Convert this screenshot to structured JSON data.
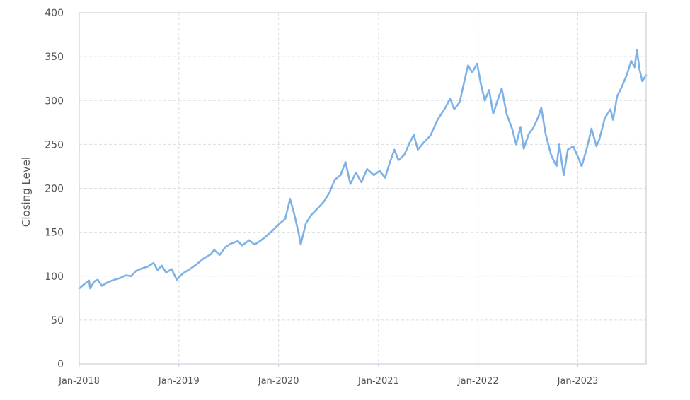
{
  "chart_data": {
    "type": "line",
    "title": "",
    "xlabel": "",
    "ylabel": "Closing Level",
    "ylim": [
      0,
      400
    ],
    "yticks": [
      0,
      50,
      100,
      150,
      200,
      250,
      300,
      350,
      400
    ],
    "xlim": [
      "2018-01-01",
      "2023-09-08"
    ],
    "xticks": [
      "2018-01-01",
      "2019-01-01",
      "2020-01-01",
      "2021-01-01",
      "2022-01-01",
      "2023-01-01"
    ],
    "xtick_labels": [
      "Jan-2018",
      "Jan-2019",
      "Jan-2020",
      "Jan-2021",
      "Jan-2022",
      "Jan-2023"
    ],
    "grid": true,
    "legend": "none",
    "color": "#7eb2e6",
    "series": [
      {
        "points": [
          [
            "2018-01-01",
            86
          ],
          [
            "2018-01-20",
            91
          ],
          [
            "2018-02-06",
            95
          ],
          [
            "2018-02-10",
            86
          ],
          [
            "2018-02-25",
            94
          ],
          [
            "2018-03-10",
            96
          ],
          [
            "2018-03-25",
            89
          ],
          [
            "2018-04-15",
            93
          ],
          [
            "2018-05-10",
            96
          ],
          [
            "2018-06-01",
            98
          ],
          [
            "2018-06-20",
            101
          ],
          [
            "2018-07-10",
            100
          ],
          [
            "2018-07-28",
            106
          ],
          [
            "2018-08-20",
            109
          ],
          [
            "2018-09-10",
            111
          ],
          [
            "2018-09-30",
            115
          ],
          [
            "2018-10-15",
            107
          ],
          [
            "2018-10-30",
            112
          ],
          [
            "2018-11-15",
            104
          ],
          [
            "2018-12-05",
            108
          ],
          [
            "2018-12-24",
            96
          ],
          [
            "2019-01-15",
            103
          ],
          [
            "2019-02-10",
            108
          ],
          [
            "2019-03-05",
            113
          ],
          [
            "2019-04-01",
            120
          ],
          [
            "2019-04-28",
            125
          ],
          [
            "2019-05-10",
            130
          ],
          [
            "2019-05-30",
            124
          ],
          [
            "2019-06-20",
            133
          ],
          [
            "2019-07-10",
            137
          ],
          [
            "2019-08-05",
            140
          ],
          [
            "2019-08-20",
            135
          ],
          [
            "2019-09-15",
            141
          ],
          [
            "2019-10-05",
            136
          ],
          [
            "2019-10-25",
            140
          ],
          [
            "2019-11-15",
            145
          ],
          [
            "2019-12-10",
            152
          ],
          [
            "2020-01-05",
            160
          ],
          [
            "2020-01-25",
            165
          ],
          [
            "2020-02-12",
            188
          ],
          [
            "2020-02-28",
            170
          ],
          [
            "2020-03-15",
            148
          ],
          [
            "2020-03-22",
            136
          ],
          [
            "2020-04-10",
            160
          ],
          [
            "2020-04-30",
            170
          ],
          [
            "2020-05-20",
            176
          ],
          [
            "2020-06-15",
            185
          ],
          [
            "2020-07-05",
            195
          ],
          [
            "2020-07-25",
            210
          ],
          [
            "2020-08-15",
            215
          ],
          [
            "2020-09-02",
            230
          ],
          [
            "2020-09-20",
            205
          ],
          [
            "2020-10-10",
            218
          ],
          [
            "2020-10-30",
            207
          ],
          [
            "2020-11-20",
            222
          ],
          [
            "2020-12-15",
            215
          ],
          [
            "2021-01-05",
            220
          ],
          [
            "2021-01-25",
            212
          ],
          [
            "2021-02-10",
            228
          ],
          [
            "2021-02-28",
            244
          ],
          [
            "2021-03-15",
            232
          ],
          [
            "2021-04-05",
            238
          ],
          [
            "2021-04-25",
            252
          ],
          [
            "2021-05-10",
            261
          ],
          [
            "2021-05-25",
            244
          ],
          [
            "2021-06-15",
            252
          ],
          [
            "2021-07-10",
            260
          ],
          [
            "2021-08-05",
            278
          ],
          [
            "2021-08-30",
            290
          ],
          [
            "2021-09-20",
            302
          ],
          [
            "2021-10-05",
            290
          ],
          [
            "2021-10-25",
            298
          ],
          [
            "2021-11-10",
            320
          ],
          [
            "2021-11-25",
            340
          ],
          [
            "2021-12-10",
            332
          ],
          [
            "2021-12-28",
            342
          ],
          [
            "2022-01-10",
            320
          ],
          [
            "2022-01-25",
            300
          ],
          [
            "2022-02-10",
            312
          ],
          [
            "2022-02-25",
            285
          ],
          [
            "2022-03-15",
            302
          ],
          [
            "2022-03-28",
            314
          ],
          [
            "2022-04-15",
            285
          ],
          [
            "2022-05-05",
            268
          ],
          [
            "2022-05-20",
            250
          ],
          [
            "2022-06-05",
            270
          ],
          [
            "2022-06-17",
            245
          ],
          [
            "2022-07-05",
            262
          ],
          [
            "2022-07-20",
            268
          ],
          [
            "2022-08-10",
            282
          ],
          [
            "2022-08-20",
            292
          ],
          [
            "2022-09-05",
            262
          ],
          [
            "2022-09-25",
            238
          ],
          [
            "2022-10-15",
            225
          ],
          [
            "2022-10-25",
            250
          ],
          [
            "2022-11-02",
            232
          ],
          [
            "2022-11-10",
            215
          ],
          [
            "2022-11-25",
            244
          ],
          [
            "2022-12-15",
            248
          ],
          [
            "2023-01-05",
            233
          ],
          [
            "2023-01-15",
            225
          ],
          [
            "2023-02-05",
            248
          ],
          [
            "2023-02-20",
            268
          ],
          [
            "2023-03-10",
            248
          ],
          [
            "2023-03-20",
            255
          ],
          [
            "2023-04-10",
            280
          ],
          [
            "2023-04-30",
            290
          ],
          [
            "2023-05-10",
            278
          ],
          [
            "2023-05-25",
            305
          ],
          [
            "2023-06-10",
            315
          ],
          [
            "2023-06-30",
            330
          ],
          [
            "2023-07-15",
            345
          ],
          [
            "2023-07-28",
            338
          ],
          [
            "2023-08-05",
            358
          ],
          [
            "2023-08-15",
            335
          ],
          [
            "2023-08-25",
            322
          ],
          [
            "2023-09-08",
            329
          ]
        ]
      }
    ]
  }
}
